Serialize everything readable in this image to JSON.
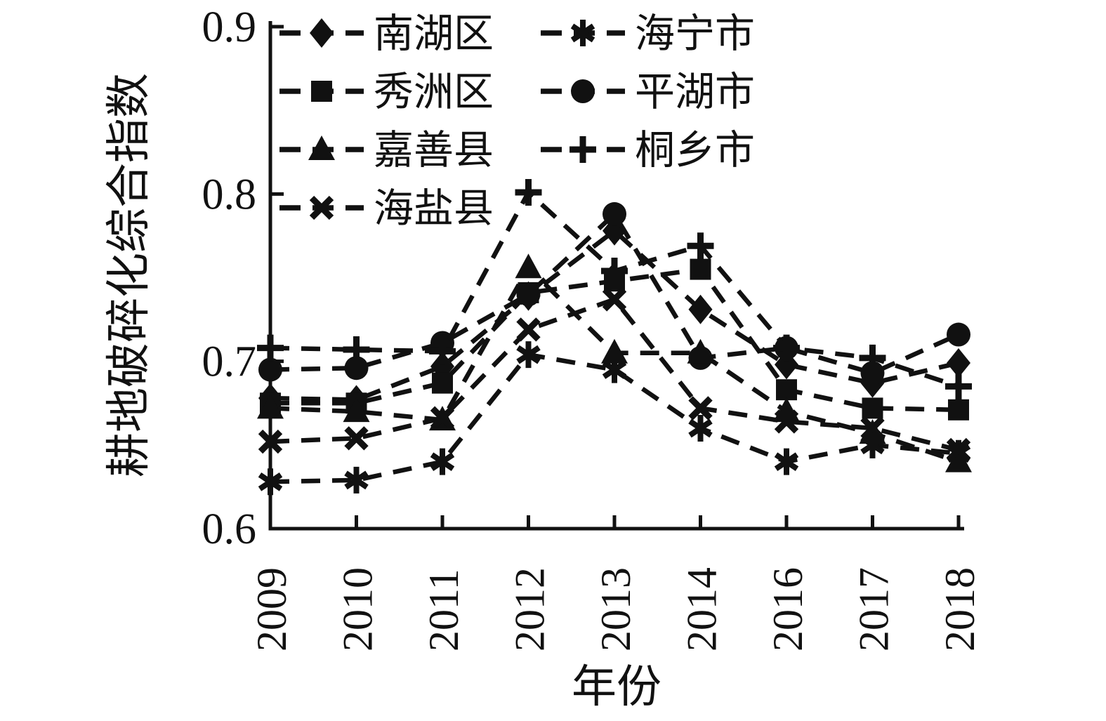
{
  "figure": {
    "background": "#ffffff",
    "ink_color": "#111111"
  },
  "chart_data": {
    "type": "line",
    "title": "",
    "xlabel": "年份",
    "ylabel": "耕地破碎化综合指数",
    "line_style": "dashed",
    "grid": false,
    "legend_position": "top-left-inside",
    "legend_columns": 2,
    "ylim": [
      0.6,
      0.9
    ],
    "y_ticks": [
      0.6,
      0.7,
      0.8,
      0.9
    ],
    "y_tick_labels": [
      "0.6",
      "0.7",
      "0.8",
      "0.9"
    ],
    "categories": [
      "2009",
      "2010",
      "2011",
      "2012",
      "2013",
      "2014",
      "2016",
      "2017",
      "2018"
    ],
    "series": [
      {
        "name": "南湖区",
        "marker": "diamond",
        "values": [
          0.678,
          0.677,
          0.697,
          0.739,
          0.778,
          0.731,
          0.698,
          0.687,
          0.699
        ]
      },
      {
        "name": "海宁市",
        "marker": "asterisk",
        "values": [
          0.628,
          0.629,
          0.64,
          0.704,
          0.695,
          0.66,
          0.64,
          0.65,
          0.645
        ]
      },
      {
        "name": "秀洲区",
        "marker": "square",
        "values": [
          0.675,
          0.675,
          0.687,
          0.741,
          0.748,
          0.755,
          0.683,
          0.672,
          0.671
        ]
      },
      {
        "name": "平湖市",
        "marker": "circle",
        "values": [
          0.695,
          0.696,
          0.711,
          0.74,
          0.788,
          0.702,
          0.708,
          0.693,
          0.716
        ]
      },
      {
        "name": "嘉善县",
        "marker": "triangle",
        "values": [
          0.672,
          0.67,
          0.665,
          0.756,
          0.705,
          0.705,
          0.67,
          0.657,
          0.64
        ]
      },
      {
        "name": "桐乡市",
        "marker": "plus",
        "values": [
          0.708,
          0.707,
          0.706,
          0.801,
          0.754,
          0.769,
          0.708,
          0.702,
          0.685
        ]
      },
      {
        "name": "海盐县",
        "marker": "x",
        "values": [
          0.652,
          0.654,
          0.666,
          0.719,
          0.737,
          0.672,
          0.664,
          0.66,
          0.647
        ]
      }
    ]
  }
}
